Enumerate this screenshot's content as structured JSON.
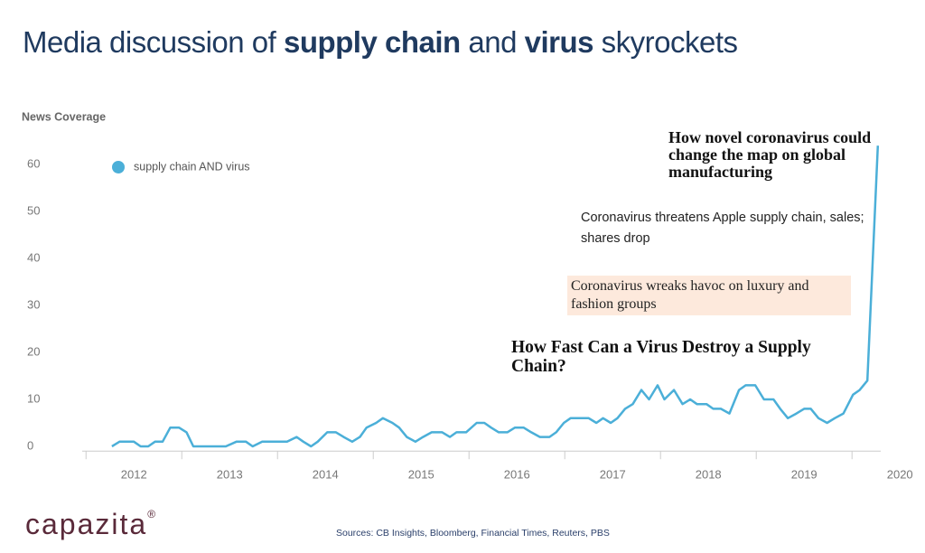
{
  "chart_data": {
    "type": "line",
    "title": [
      {
        "text": "Media discussion of ",
        "bold": false
      },
      {
        "text": "supply chain",
        "bold": true
      },
      {
        "text": " and ",
        "bold": false
      },
      {
        "text": "virus",
        "bold": true
      },
      {
        "text": " skyrockets",
        "bold": false
      }
    ],
    "y_label": "News Coverage",
    "x": [
      2012.27,
      2012.35,
      2012.42,
      2012.5,
      2012.57,
      2012.65,
      2012.72,
      2012.8,
      2012.88,
      2012.97,
      2013.05,
      2013.12,
      2013.2,
      2013.46,
      2013.57,
      2013.67,
      2013.74,
      2013.84,
      2013.93,
      2014.03,
      2014.1,
      2014.2,
      2014.27,
      2014.35,
      2014.42,
      2014.52,
      2014.61,
      2014.69,
      2014.78,
      2014.86,
      2014.93,
      2015.03,
      2015.1,
      2015.2,
      2015.27,
      2015.35,
      2015.44,
      2015.52,
      2015.61,
      2015.72,
      2015.8,
      2015.87,
      2015.97,
      2016.08,
      2016.16,
      2016.23,
      2016.31,
      2016.4,
      2016.48,
      2016.57,
      2016.65,
      2016.74,
      2016.84,
      2016.91,
      2016.99,
      2017.06,
      2017.18,
      2017.25,
      2017.33,
      2017.4,
      2017.48,
      2017.55,
      2017.63,
      2017.71,
      2017.8,
      2017.88,
      2017.97,
      2018.04,
      2018.14,
      2018.23,
      2018.31,
      2018.38,
      2018.48,
      2018.55,
      2018.63,
      2018.72,
      2018.82,
      2018.89,
      2018.99,
      2019.08,
      2019.18,
      2019.25,
      2019.33,
      2019.42,
      2019.5,
      2019.57,
      2019.65,
      2019.74,
      2019.82,
      2019.91,
      2020.01,
      2020.08,
      2020.16,
      2020.27
    ],
    "series": [
      {
        "name": "supply chain AND virus",
        "color": "#4bafd8",
        "values": [
          0,
          1,
          1,
          1,
          0,
          0,
          1,
          1,
          4,
          4,
          3,
          0,
          0,
          0,
          1,
          1,
          0,
          1,
          1,
          1,
          1,
          2,
          1,
          0,
          1,
          3,
          3,
          2,
          1,
          2,
          4,
          5,
          6,
          5,
          4,
          2,
          1,
          2,
          3,
          3,
          2,
          3,
          3,
          5,
          5,
          4,
          3,
          3,
          4,
          4,
          3,
          2,
          2,
          3,
          5,
          6,
          6,
          6,
          5,
          6,
          5,
          6,
          8,
          9,
          12,
          10,
          13,
          10,
          12,
          9,
          10,
          9,
          9,
          8,
          8,
          7,
          12,
          13,
          13,
          10,
          10,
          8,
          6,
          7,
          8,
          8,
          6,
          5,
          6,
          7,
          11,
          12,
          14,
          64
        ]
      }
    ],
    "xlim": [
      2011.96,
      2020.3
    ],
    "xticks": [
      2012,
      2013,
      2014,
      2015,
      2016,
      2017,
      2018,
      2019,
      2020
    ],
    "ylim": [
      -1,
      65
    ],
    "yticks": [
      0,
      10,
      20,
      30,
      40,
      50,
      60
    ],
    "grid": false,
    "legend": "top-left",
    "annotations": [
      "How novel coronavirus could change the map on global manufacturing",
      "Coronavirus threatens Apple supply chain, sales; shares drop",
      "Coronavirus wreaks havoc on luxury and fashion groups",
      "How Fast Can a Virus Destroy a Supply Chain?"
    ],
    "logo": "capazita",
    "logo_mark": "®",
    "sources": "Sources: CB Insights,  Bloomberg, Financial Times, Reuters, PBS"
  }
}
